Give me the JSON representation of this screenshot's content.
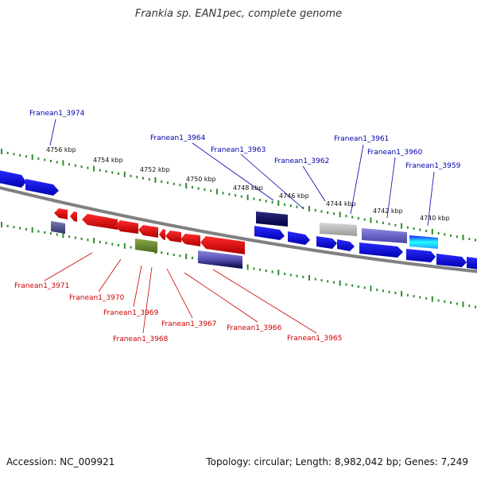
{
  "title": "Frankia sp. EAN1pec, complete genome",
  "accession": "Accession: NC_009921",
  "summary": "Topology: circular; Length: 8,982,042 bp; Genes: 7,249",
  "colors": {
    "backbone": "#808080",
    "tick": "#2e8b2e",
    "forward_label": "#0000aa",
    "reverse_label": "#cc0000"
  },
  "scale_labels": [
    "4756 kbp",
    "4754 kbp",
    "4752 kbp",
    "4750 kbp",
    "4748 kbp",
    "4746 kbp",
    "4744 kbp",
    "4742 kbp",
    "4740 kbp"
  ],
  "forward_labels": [
    "Franean1_3974",
    "Franean1_3964",
    "Franean1_3963",
    "Franean1_3962",
    "Franean1_3961",
    "Franean1_3960",
    "Franean1_3959"
  ],
  "reverse_labels": [
    "Franean1_3971",
    "Franean1_3970",
    "Franean1_3969",
    "Franean1_3968",
    "Franean1_3967",
    "Franean1_3966",
    "Franean1_3965"
  ]
}
